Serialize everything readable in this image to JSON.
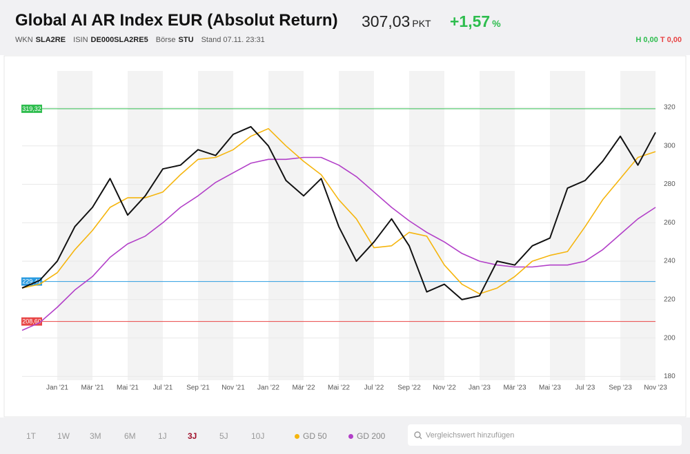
{
  "header": {
    "title": "Global AI AR Index EUR (Absolut Return)",
    "price": "307,03",
    "price_unit": "PKT",
    "change": "+1,57",
    "change_unit": "%",
    "wkn_label": "WKN",
    "wkn": "SLA2RE",
    "isin_label": "ISIN",
    "isin": "DE000SLA2RE5",
    "exchange_label": "Börse",
    "exchange": "STU",
    "timestamp": "Stand 07.11. 23:31",
    "high": "H 0,00",
    "low": "T 0,00"
  },
  "chart_data": {
    "type": "line",
    "categories": [
      null,
      null,
      "Jan '21",
      null,
      "Mär '21",
      null,
      "Mai '21",
      null,
      "Jul '21",
      null,
      "Sep '21",
      null,
      "Nov '21",
      null,
      "Jan '22",
      null,
      "Mär '22",
      null,
      "Mai '22",
      null,
      "Jul '22",
      null,
      "Sep '22",
      null,
      "Nov '22",
      null,
      "Jan '23",
      null,
      "Mär '23",
      null,
      "Mai '23",
      null,
      "Jul '23",
      null,
      "Sep '23",
      null,
      "Nov '23"
    ],
    "series": [
      {
        "color": "#111111",
        "values": [
          226,
          230,
          240,
          258,
          268,
          283,
          264,
          274,
          288,
          290,
          298,
          295,
          306,
          310,
          300,
          282,
          274,
          283,
          258,
          240,
          250,
          262,
          248,
          224,
          228,
          220,
          222,
          240,
          238,
          248,
          252,
          278,
          282,
          292,
          305,
          290,
          307.03
        ]
      },
      {
        "name": "GD 50",
        "color": "#f5b50d",
        "values": [
          226,
          228,
          234,
          246,
          256,
          268,
          273,
          273,
          276,
          285,
          293,
          294,
          298,
          305,
          309,
          300,
          292,
          285,
          272,
          262,
          247,
          248,
          255,
          253,
          238,
          228,
          223,
          226,
          232,
          240,
          243,
          245,
          258,
          272,
          283,
          294,
          297
        ]
      },
      {
        "name": "GD 200",
        "color": "#b23fc8",
        "values": [
          204,
          208,
          216,
          225,
          232,
          242,
          249,
          253,
          260,
          268,
          274,
          281,
          286,
          291,
          293,
          293,
          294,
          294,
          290,
          284,
          276,
          268,
          261,
          255,
          250,
          244,
          240,
          238,
          237,
          237,
          238,
          238,
          240,
          246,
          254,
          262,
          268
        ]
      }
    ],
    "reference_lines": [
      {
        "value": 319.32,
        "label": "319,32",
        "color": "#2ebd4e"
      },
      {
        "value": 229.41,
        "label": "229,41",
        "color": "#2a9be0"
      },
      {
        "value": 208.6,
        "label": "208,60",
        "color": "#e84545"
      }
    ],
    "ylim": [
      178,
      339
    ],
    "yticks": [
      180,
      200,
      220,
      240,
      260,
      280,
      300,
      320
    ],
    "grid": true
  },
  "toolbar": {
    "ranges": [
      "1T",
      "1W",
      "3M",
      "6M",
      "1J",
      "3J",
      "5J",
      "10J"
    ],
    "active": "3J",
    "search_placeholder": "Vergleichswert hinzufügen"
  }
}
